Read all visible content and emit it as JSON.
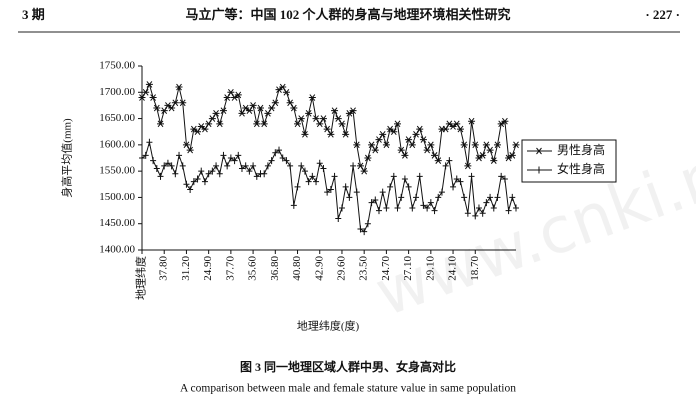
{
  "header": {
    "left": "3 期",
    "title": "马立广等：中国 102 个人群的身高与地理环境相关性研究",
    "right": "· 227 ·"
  },
  "chart_data": {
    "type": "line",
    "ylabel": "身高平均值(mm)",
    "xlabel": "地理纬度(度)",
    "ylim": [
      1400,
      1750
    ],
    "yticks": [
      {
        "value": 1400,
        "label": "1400.00"
      },
      {
        "value": 1450,
        "label": "1450.00"
      },
      {
        "value": 1500,
        "label": "1500.00"
      },
      {
        "value": 1550,
        "label": "1550.00"
      },
      {
        "value": 1600,
        "label": "1600.00"
      },
      {
        "value": 1650,
        "label": "1650.00"
      },
      {
        "value": 1700,
        "label": "1700.00"
      },
      {
        "value": 1750,
        "label": "1750.00"
      }
    ],
    "categories": [
      "地理纬度",
      null,
      null,
      null,
      null,
      null,
      "37.80",
      null,
      null,
      null,
      null,
      null,
      "31.20",
      null,
      null,
      null,
      null,
      null,
      "24.90",
      null,
      null,
      null,
      null,
      null,
      "37.70",
      null,
      null,
      null,
      null,
      null,
      "35.60",
      null,
      null,
      null,
      null,
      null,
      "36.80",
      null,
      null,
      null,
      null,
      null,
      "40.80",
      null,
      null,
      null,
      null,
      null,
      "42.90",
      null,
      null,
      null,
      null,
      null,
      "29.60",
      null,
      null,
      null,
      null,
      null,
      "23.50",
      null,
      null,
      null,
      null,
      null,
      "24.70",
      null,
      null,
      null,
      null,
      null,
      "27.10",
      null,
      null,
      null,
      null,
      null,
      "29.10",
      null,
      null,
      null,
      null,
      null,
      "24.10",
      null,
      null,
      null,
      null,
      null,
      "18.70",
      null,
      null,
      null,
      null,
      null,
      null,
      null,
      null,
      null,
      null,
      null
    ],
    "series": [
      {
        "name": "男性身高",
        "color": "#111111",
        "marker": "star",
        "values": [
          1690,
          1700,
          1715,
          1690,
          1670,
          1640,
          1665,
          1675,
          1670,
          1680,
          1710,
          1680,
          1600,
          1590,
          1630,
          1625,
          1635,
          1630,
          1640,
          1650,
          1660,
          1640,
          1665,
          1690,
          1700,
          1690,
          1695,
          1660,
          1670,
          1665,
          1675,
          1640,
          1670,
          1640,
          1660,
          1670,
          1680,
          1705,
          1710,
          1700,
          1680,
          1670,
          1640,
          1650,
          1620,
          1660,
          1690,
          1650,
          1640,
          1650,
          1630,
          1620,
          1665,
          1650,
          1640,
          1620,
          1660,
          1665,
          1600,
          1560,
          1550,
          1575,
          1600,
          1590,
          1610,
          1620,
          1600,
          1630,
          1625,
          1640,
          1590,
          1580,
          1610,
          1600,
          1620,
          1630,
          1610,
          1590,
          1600,
          1580,
          1570,
          1630,
          1630,
          1640,
          1635,
          1640,
          1630,
          1600,
          1560,
          1645,
          1600,
          1575,
          1580,
          1600,
          1590,
          1570,
          1600,
          1640,
          1645,
          1575,
          1580,
          1600
        ]
      },
      {
        "name": "女性身高",
        "color": "#111111",
        "marker": "plus",
        "values": [
          1575,
          1580,
          1605,
          1570,
          1555,
          1540,
          1560,
          1565,
          1560,
          1545,
          1580,
          1560,
          1525,
          1515,
          1530,
          1535,
          1550,
          1530,
          1545,
          1550,
          1560,
          1545,
          1580,
          1560,
          1575,
          1570,
          1580,
          1555,
          1560,
          1550,
          1560,
          1540,
          1545,
          1545,
          1560,
          1570,
          1585,
          1590,
          1575,
          1570,
          1560,
          1485,
          1520,
          1560,
          1550,
          1530,
          1540,
          1530,
          1565,
          1555,
          1510,
          1515,
          1540,
          1460,
          1480,
          1520,
          1500,
          1560,
          1510,
          1440,
          1435,
          1450,
          1490,
          1495,
          1475,
          1510,
          1480,
          1520,
          1540,
          1480,
          1500,
          1535,
          1520,
          1480,
          1500,
          1540,
          1485,
          1480,
          1490,
          1475,
          1500,
          1510,
          1560,
          1570,
          1520,
          1535,
          1530,
          1500,
          1470,
          1540,
          1465,
          1480,
          1470,
          1490,
          1500,
          1480,
          1500,
          1540,
          1535,
          1475,
          1500,
          1480
        ]
      }
    ],
    "legend": "right"
  },
  "caption": {
    "zh": "图 3   同一地理区域人群中男、女身高对比",
    "en": "A comparison between male and female stature value in same population"
  },
  "watermark": "www.cnki.net"
}
